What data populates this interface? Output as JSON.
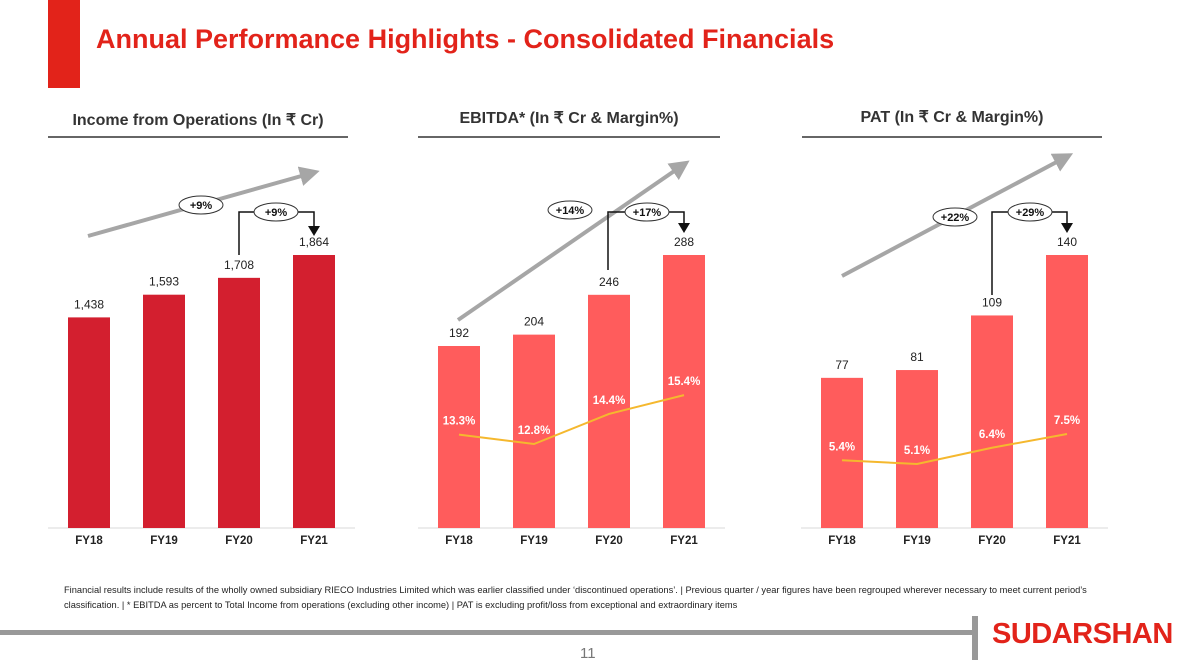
{
  "title": "Annual Performance Highlights - Consolidated Financials",
  "colors": {
    "brand": "#e2231a",
    "bar_income": "#d31f2f",
    "bar_other": "#ff5c5c",
    "margin_line": "#f5b82e",
    "trend_arrow": "#a6a6a6"
  },
  "chart_data": [
    {
      "type": "bar",
      "title": "Income from Operations  (In ₹ Cr)",
      "categories": [
        "FY18",
        "FY19",
        "FY20",
        "FY21"
      ],
      "values": [
        1438,
        1593,
        1708,
        1864
      ],
      "value_labels": [
        "1,438",
        "1,593",
        "1,708",
        "1,864"
      ],
      "ylim": [
        0,
        1864
      ],
      "cagr_label": "+9%",
      "yoy_label": "+9%"
    },
    {
      "type": "bar",
      "title": "EBITDA* (In ₹ Cr & Margin%)",
      "categories": [
        "FY18",
        "FY19",
        "FY20",
        "FY21"
      ],
      "values": [
        192,
        204,
        246,
        288
      ],
      "value_labels": [
        "192",
        "204",
        "246",
        "288"
      ],
      "ylim": [
        0,
        288
      ],
      "margin": [
        13.3,
        12.8,
        14.4,
        15.4
      ],
      "margin_labels": [
        "13.3%",
        "12.8%",
        "14.4%",
        "15.4%"
      ],
      "cagr_label": "+14%",
      "yoy_label": "+17%"
    },
    {
      "type": "bar",
      "title": "PAT (In ₹ Cr & Margin%)",
      "categories": [
        "FY18",
        "FY19",
        "FY20",
        "FY21"
      ],
      "values": [
        77,
        81,
        109,
        140
      ],
      "value_labels": [
        "77",
        "81",
        "109",
        "140"
      ],
      "ylim": [
        0,
        140
      ],
      "margin": [
        5.4,
        5.1,
        6.4,
        7.5
      ],
      "margin_labels": [
        "5.4%",
        "5.1%",
        "6.4%",
        "7.5%"
      ],
      "cagr_label": "+22%",
      "yoy_label": "+29%"
    }
  ],
  "footnote": "Financial results include results of the wholly owned subsidiary RIECO Industries Limited which was earlier classified under ‘discontinued operations’. | Previous quarter / year figures have been regrouped wherever necessary to meet  current period’s classification. | * EBITDA as percent to Total Income from operations (excluding other income) | PAT is excluding profit/loss from exceptional and extraordinary items",
  "logo": "SUDARSHAN",
  "page_number": "11"
}
